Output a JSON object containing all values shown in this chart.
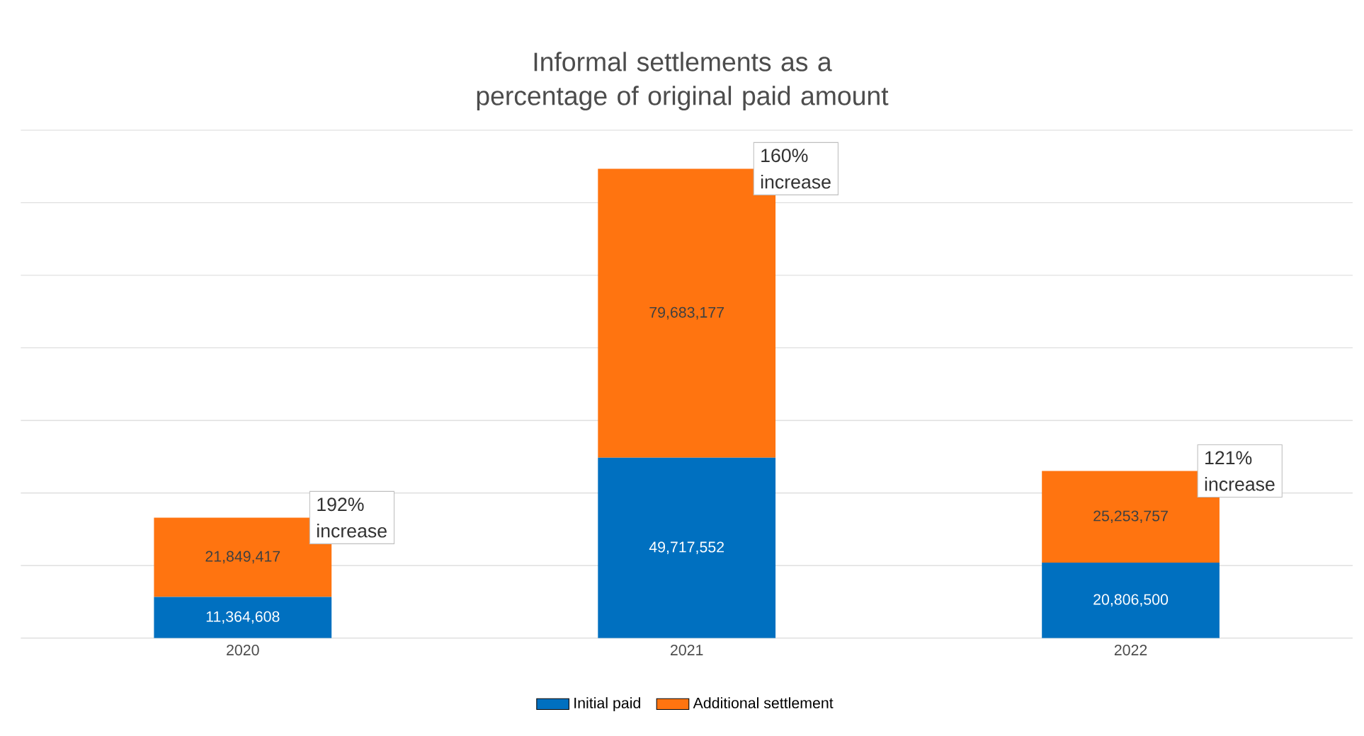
{
  "chart_data": {
    "type": "bar",
    "stacked": true,
    "title": "Informal settlements as a percentage of original paid amount",
    "categories": [
      "2020",
      "2021",
      "2022"
    ],
    "series": [
      {
        "name": "Initial paid",
        "color": "#0070c0",
        "values": [
          11364608,
          49717552,
          20806500
        ],
        "value_labels": [
          "11,364,608",
          "49,717,552",
          "20,806,500"
        ]
      },
      {
        "name": "Additional settlement",
        "color": "#ff7410",
        "values": [
          21849417,
          79683177,
          25253757
        ],
        "value_labels": [
          "21,849,417",
          "79,683,177",
          "25,253,757"
        ]
      }
    ],
    "ylim": [
      0,
      140000000
    ],
    "yticks": [
      {
        "value": 0,
        "label": null
      },
      {
        "value": 20000000,
        "label": null
      },
      {
        "value": 40000000,
        "label": null
      },
      {
        "value": 60000000,
        "label": null
      },
      {
        "value": 80000000,
        "label": null
      },
      {
        "value": 100000000,
        "label": null
      },
      {
        "value": 120000000,
        "label": null
      },
      {
        "value": 140000000,
        "label": null
      }
    ],
    "tick_labels": "x",
    "grid": "y",
    "data_labels": true,
    "legend": "bottom",
    "annotations": [
      "192% increase",
      "160% increase",
      "121% increase"
    ]
  }
}
